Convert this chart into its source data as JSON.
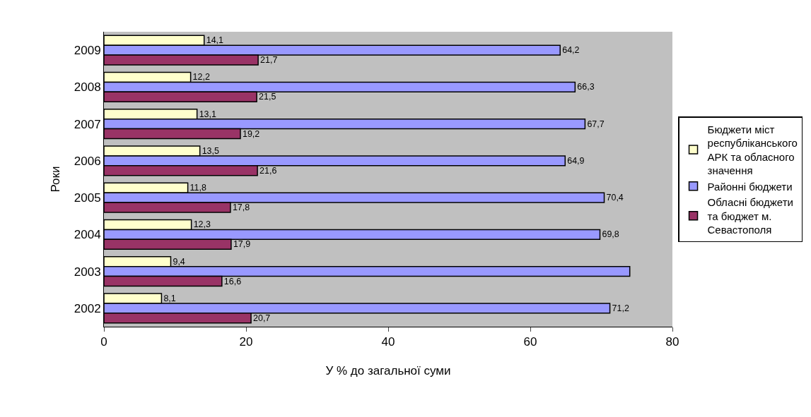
{
  "chart_data": {
    "type": "bar",
    "orientation": "horizontal",
    "xlabel": "У % до загальної суми",
    "ylabel": "Роки",
    "categories": [
      "2009",
      "2008",
      "2007",
      "2006",
      "2005",
      "2004",
      "2003",
      "2002"
    ],
    "series": [
      {
        "name": "Бюджети міст республіканського АРК та обласного значення",
        "color": "#ffffcc",
        "values": [
          14.1,
          12.2,
          13.1,
          13.5,
          11.8,
          12.3,
          9.4,
          8.1
        ],
        "value_labels": [
          "14,1",
          "12,2",
          "13,1",
          "13,5",
          "11,8",
          "12,3",
          "9,4",
          "8,1"
        ]
      },
      {
        "name": "Районні бюджети",
        "color": "#9999ff",
        "values": [
          64.2,
          66.3,
          67.7,
          64.9,
          70.4,
          69.8,
          74.0,
          71.2
        ],
        "value_labels": [
          "64,2",
          "66,3",
          "67,7",
          "64,9",
          "70,4",
          "69,8",
          null,
          "71,2"
        ]
      },
      {
        "name": "Обласні бюджети та бюджет м. Севастополя",
        "color": "#993366",
        "values": [
          21.7,
          21.5,
          19.2,
          21.6,
          17.8,
          17.9,
          16.6,
          20.7
        ],
        "value_labels": [
          "21,7",
          "21,5",
          "19,2",
          "21,6",
          "17,8",
          "17,9",
          "16,6",
          "20,7"
        ]
      }
    ],
    "xlim": [
      0,
      80
    ],
    "xticks": [
      0,
      20,
      40,
      60,
      80
    ],
    "grid": false,
    "legend": "right"
  }
}
